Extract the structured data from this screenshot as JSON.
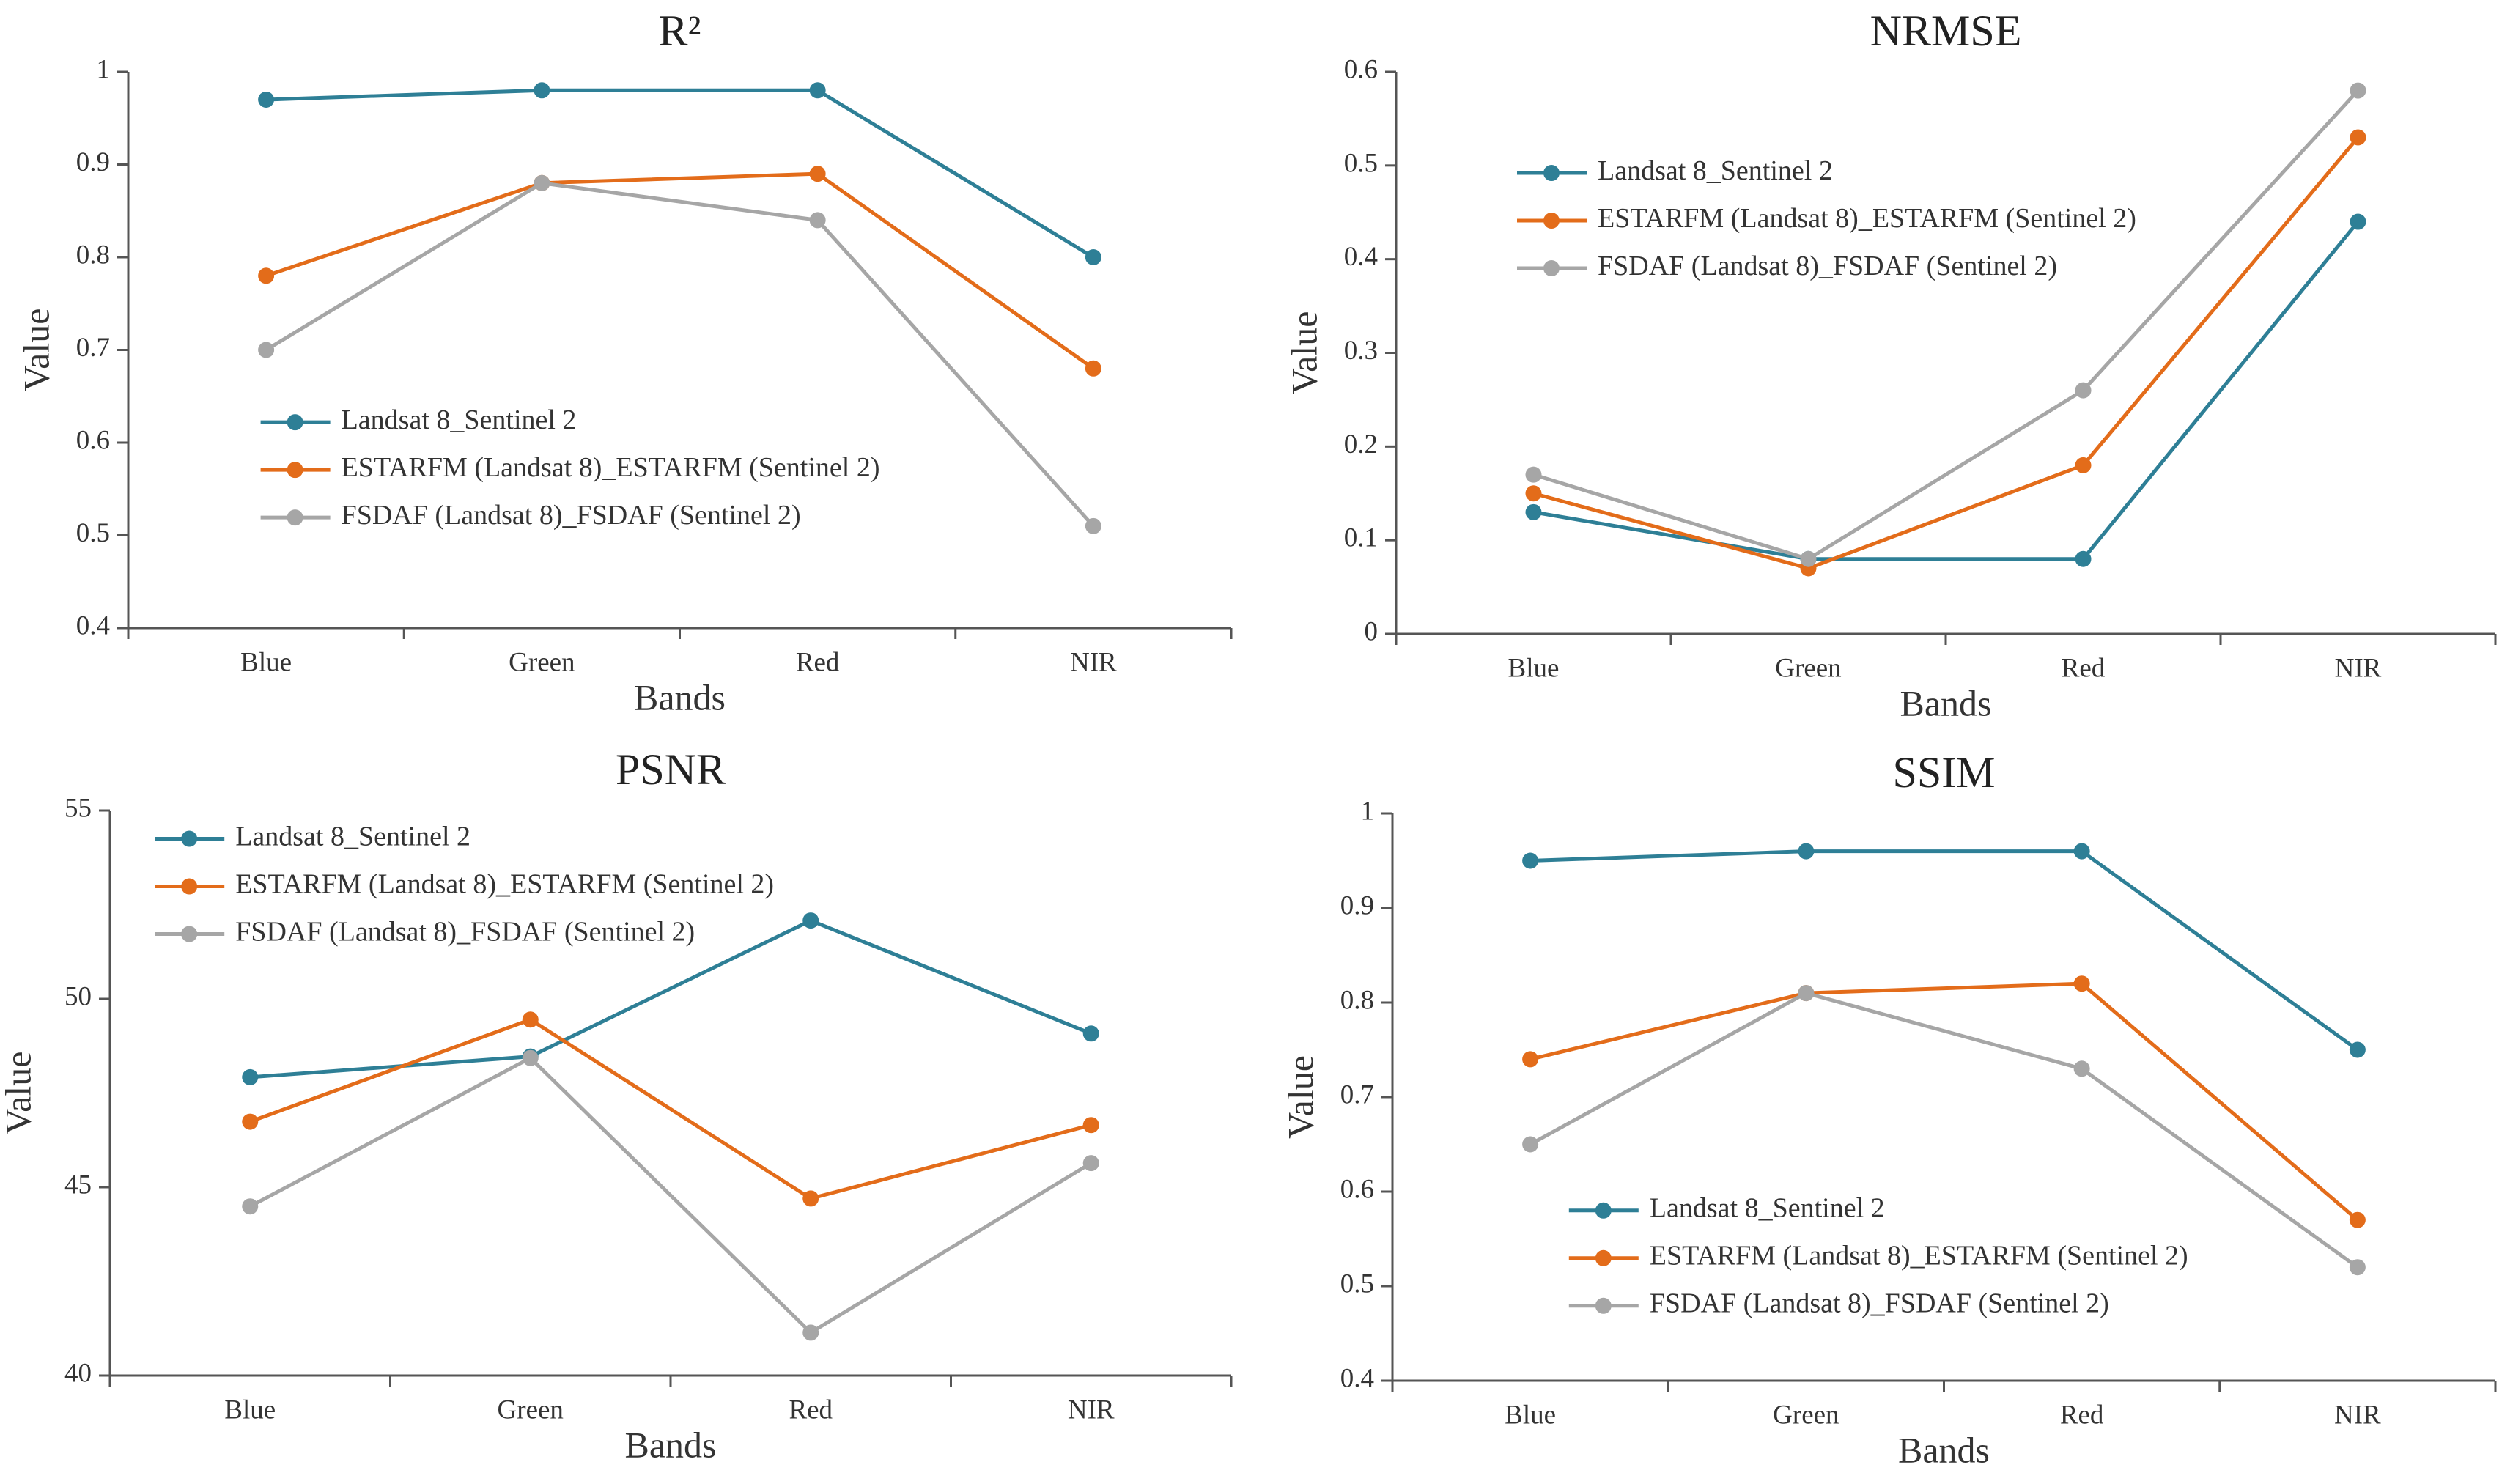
{
  "chart_data": [
    {
      "type": "line",
      "title": "R²",
      "xlabel": "Bands",
      "ylabel": "Value",
      "categories": [
        "Blue",
        "Green",
        "Red",
        "NIR"
      ],
      "series": [
        {
          "name": "Landsat 8_Sentinel 2",
          "color": "#2e7f96",
          "values": [
            0.97,
            0.98,
            0.98,
            0.8
          ]
        },
        {
          "name": "ESTARFM (Landsat 8)_ESTARFM (Sentinel 2)",
          "color": "#e36c1a",
          "values": [
            0.78,
            0.88,
            0.89,
            0.68
          ]
        },
        {
          "name": "FSDAF (Landsat 8)_FSDAF (Sentinel 2)",
          "color": "#a6a6a6",
          "values": [
            0.7,
            0.88,
            0.84,
            0.51
          ]
        }
      ],
      "ylim": [
        0.4,
        1
      ],
      "yticks": [
        0.4,
        0.5,
        0.6,
        0.7,
        0.8,
        0.9,
        1
      ],
      "legend": "center left"
    },
    {
      "type": "line",
      "title": "NRMSE",
      "xlabel": "Bands",
      "ylabel": "Value",
      "categories": [
        "Blue",
        "Green",
        "Red",
        "NIR"
      ],
      "series": [
        {
          "name": "Landsat 8_Sentinel 2",
          "color": "#2e7f96",
          "values": [
            0.13,
            0.08,
            0.08,
            0.44
          ]
        },
        {
          "name": "ESTARFM (Landsat 8)_ESTARFM (Sentinel 2)",
          "color": "#e36c1a",
          "values": [
            0.15,
            0.07,
            0.18,
            0.53
          ]
        },
        {
          "name": "FSDAF (Landsat 8)_FSDAF (Sentinel 2)",
          "color": "#a6a6a6",
          "values": [
            0.17,
            0.08,
            0.26,
            0.58
          ]
        }
      ],
      "ylim": [
        0,
        0.6
      ],
      "yticks": [
        0,
        0.1,
        0.2,
        0.3,
        0.4,
        0.5,
        0.6
      ],
      "legend": "upper left"
    },
    {
      "type": "line",
      "title": "PSNR",
      "xlabel": "Bands",
      "ylabel": "Value",
      "categories": [
        "Blue",
        "Green",
        "Red",
        "NIR"
      ],
      "series": [
        {
          "name": "Landsat 8_Sentinel 2",
          "color": "#2e7f96",
          "values": [
            47.92,
            48.47,
            52.08,
            49.08
          ]
        },
        {
          "name": "ESTARFM (Landsat 8)_ESTARFM (Sentinel 2)",
          "color": "#e36c1a",
          "values": [
            46.74,
            49.45,
            44.7,
            46.65
          ]
        },
        {
          "name": "FSDAF (Landsat 8)_FSDAF (Sentinel 2)",
          "color": "#a6a6a6",
          "values": [
            44.49,
            48.43,
            41.14,
            45.64
          ]
        }
      ],
      "ylim": [
        40,
        55
      ],
      "yticks": [
        40,
        45,
        50,
        55
      ],
      "legend": "top left"
    },
    {
      "type": "line",
      "title": "SSIM",
      "xlabel": "Bands",
      "ylabel": "Value",
      "categories": [
        "Blue",
        "Green",
        "Red",
        "NIR"
      ],
      "series": [
        {
          "name": "Landsat 8_Sentinel 2",
          "color": "#2e7f96",
          "values": [
            0.95,
            0.96,
            0.96,
            0.75
          ]
        },
        {
          "name": "ESTARFM (Landsat 8)_ESTARFM (Sentinel 2)",
          "color": "#e36c1a",
          "values": [
            0.74,
            0.81,
            0.82,
            0.57
          ]
        },
        {
          "name": "FSDAF (Landsat 8)_FSDAF (Sentinel 2)",
          "color": "#a6a6a6",
          "values": [
            0.65,
            0.81,
            0.73,
            0.52
          ]
        }
      ],
      "ylim": [
        0.4,
        1
      ],
      "yticks": [
        0.4,
        0.5,
        0.6,
        0.7,
        0.8,
        0.9,
        1
      ],
      "legend": "lower left"
    }
  ]
}
